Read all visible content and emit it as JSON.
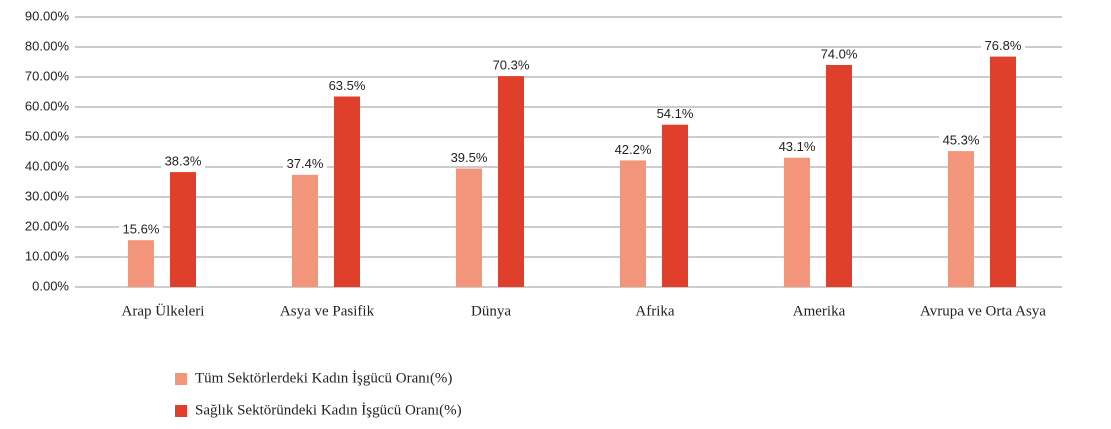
{
  "chart_data": {
    "type": "bar",
    "categories": [
      "Arap Ülkeleri",
      "Asya ve Pasifik",
      "Dünya",
      "Afrika",
      "Amerika",
      "Avrupa ve Orta Asya"
    ],
    "series": [
      {
        "name": "Tüm Sektörlerdeki Kadın İşgücü Oranı(%)",
        "color": "#f3957a",
        "values": [
          15.6,
          37.4,
          39.5,
          42.2,
          43.1,
          45.3
        ],
        "value_labels": [
          "15.6%",
          "37.4%",
          "39.5%",
          "42.2%",
          "43.1%",
          "45.3%"
        ]
      },
      {
        "name": "Sağlık Sektöründeki Kadın İşgücü Oranı(%)",
        "color": "#e0402b",
        "values": [
          38.3,
          63.5,
          70.3,
          54.1,
          74.0,
          76.8
        ],
        "value_labels": [
          "38.3%",
          "63.5%",
          "70.3%",
          "54.1%",
          "74.0%",
          "76.8%"
        ]
      }
    ],
    "ylim": [
      0,
      90
    ],
    "yticks": [
      {
        "value": 0,
        "label": "0.00%"
      },
      {
        "value": 10,
        "label": "10.00%"
      },
      {
        "value": 20,
        "label": "20.00%"
      },
      {
        "value": 30,
        "label": "30.00%"
      },
      {
        "value": 40,
        "label": "40.00%"
      },
      {
        "value": 50,
        "label": "50.00%"
      },
      {
        "value": 60,
        "label": "60.00%"
      },
      {
        "value": 70,
        "label": "70.00%"
      },
      {
        "value": 80,
        "label": "80.00%"
      },
      {
        "value": 90,
        "label": "90.00%"
      }
    ],
    "grid": true
  }
}
